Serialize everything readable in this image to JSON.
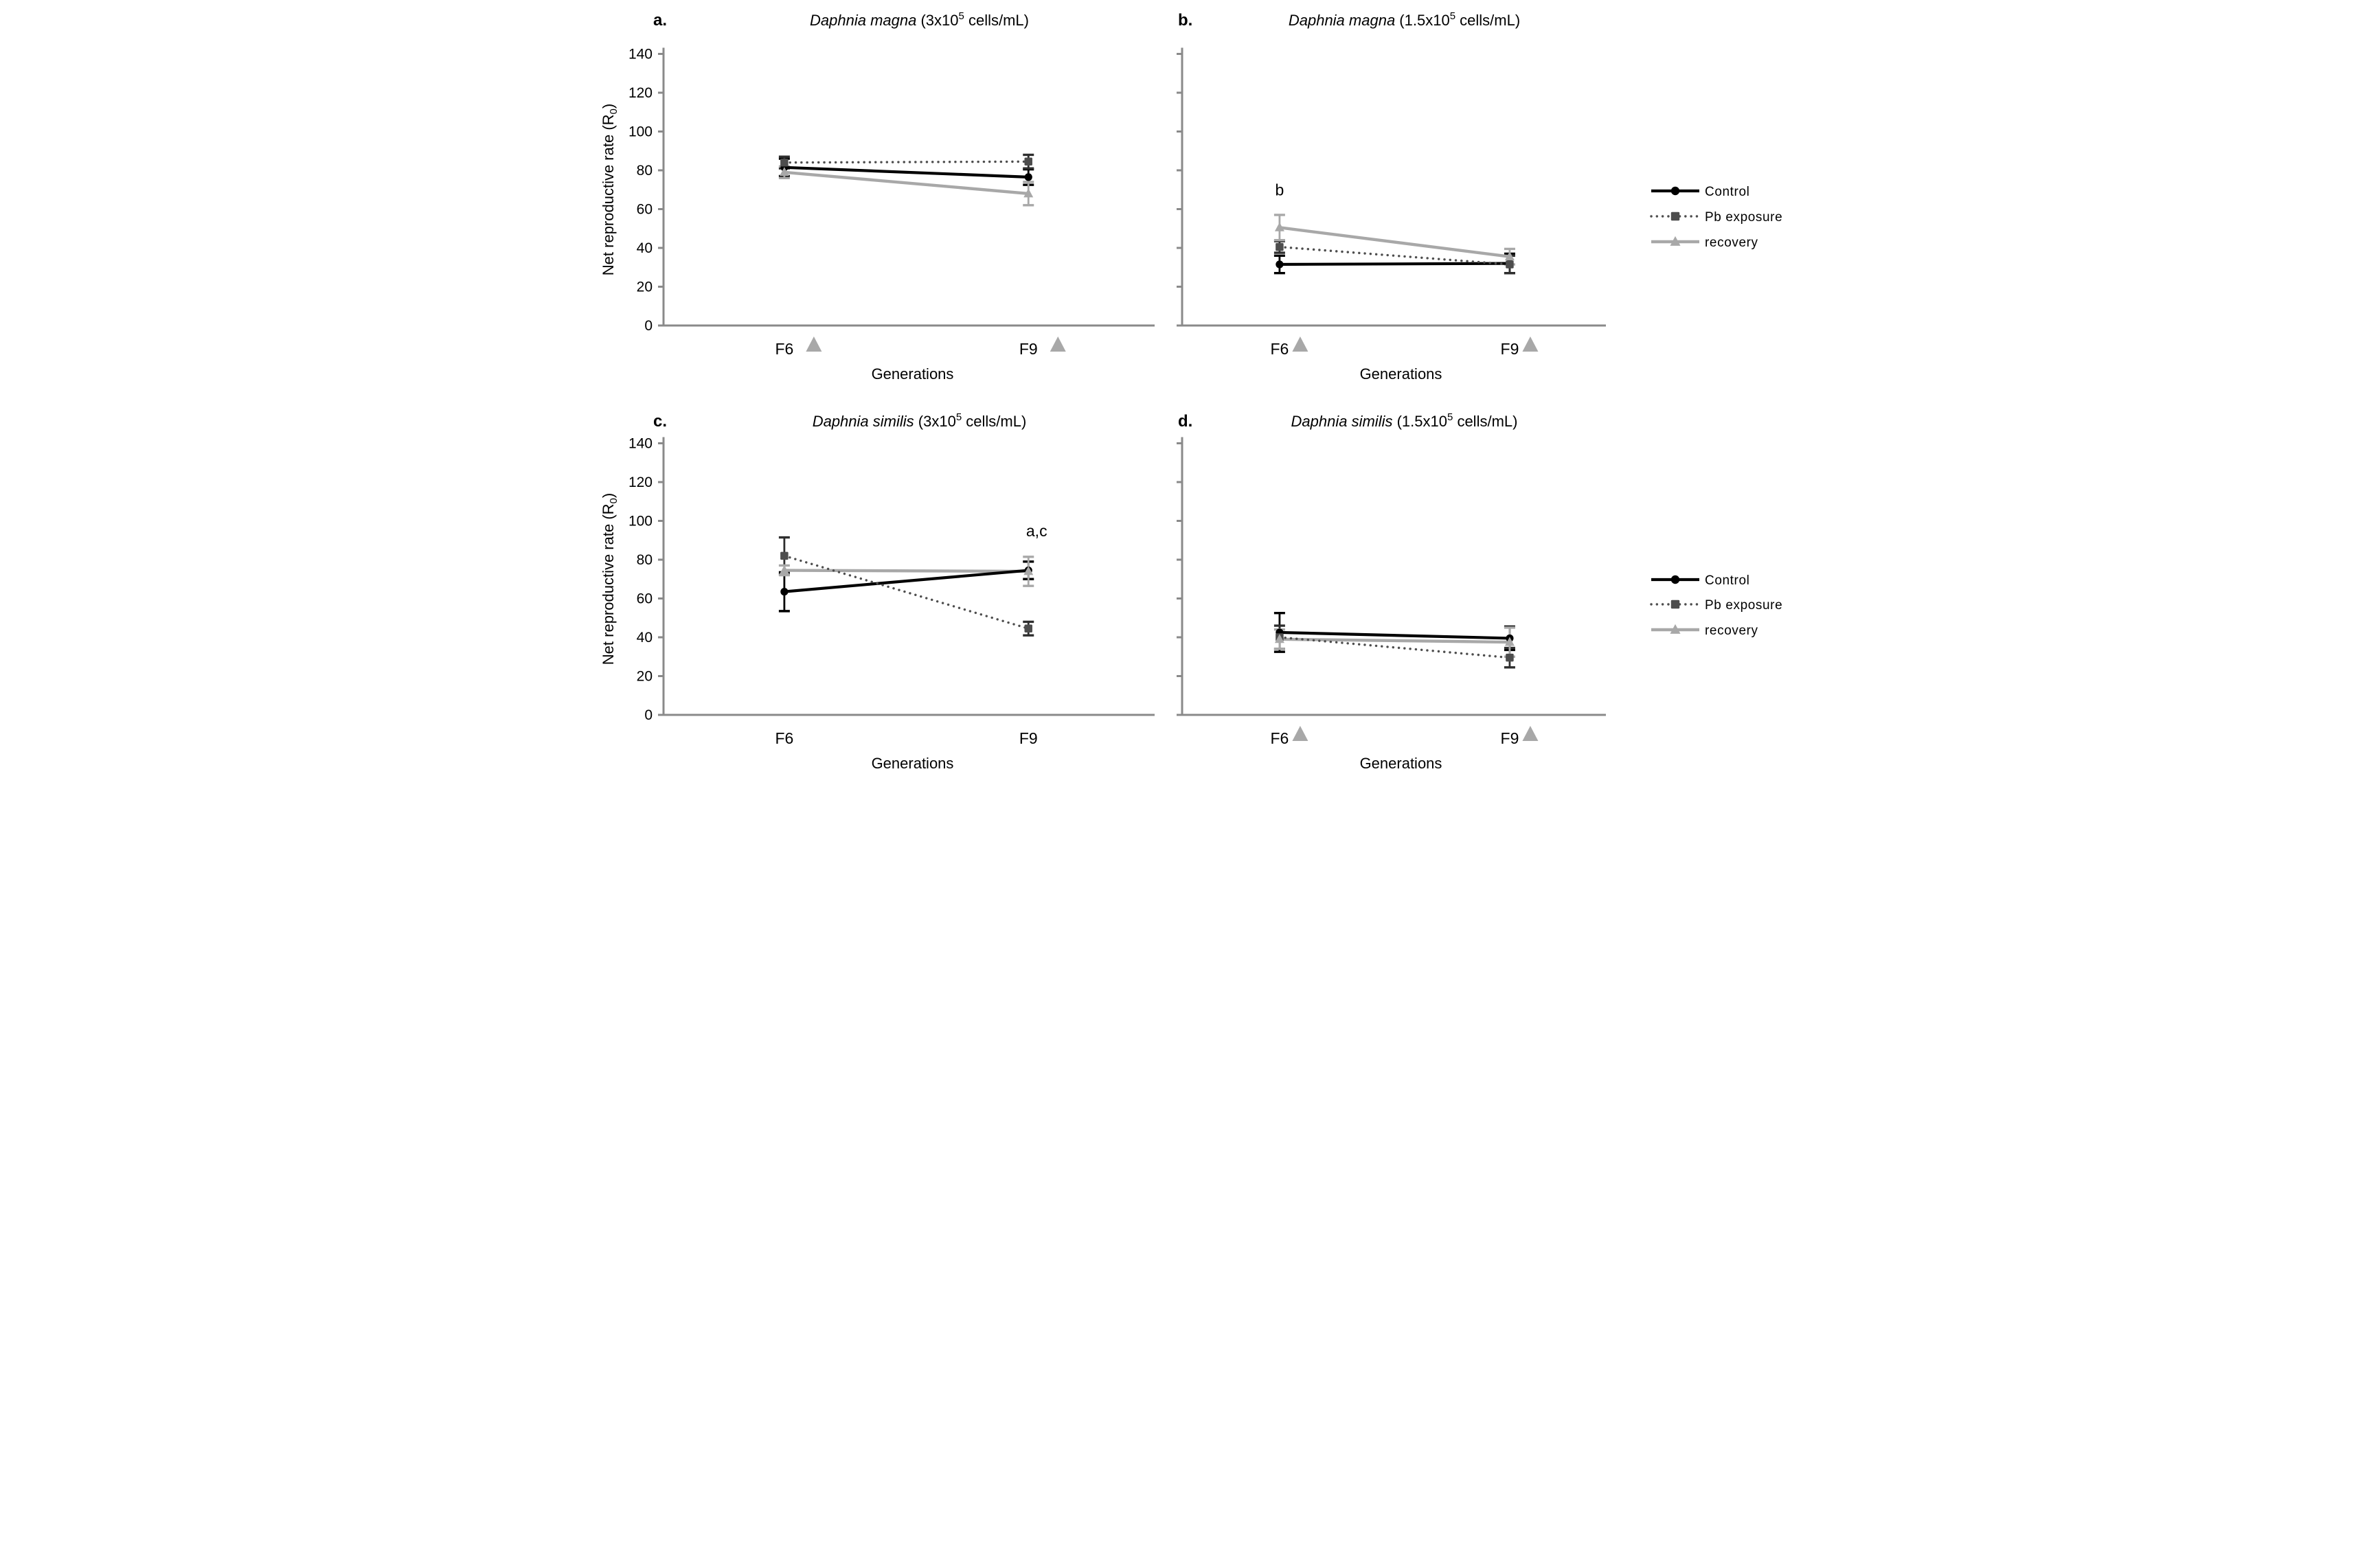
{
  "figure": {
    "y_axis_label": {
      "pre": "Net reproductive rate (R",
      "sub": "0",
      "post": ")"
    },
    "x_axis_label": "Generations",
    "y_ticks": [
      0,
      20,
      40,
      60,
      80,
      100,
      120,
      140
    ],
    "categories": [
      "F6",
      "F9"
    ],
    "colors": {
      "control": "#000000",
      "pb_exposure": "#4d4d4d",
      "recovery": "#a8a8a8",
      "axis": "#8a8a8a",
      "category_triangle": "#a8a8a8",
      "text": "#000000"
    },
    "legend": {
      "items": [
        {
          "key": "control",
          "label": "Control"
        },
        {
          "key": "pb_exposure",
          "label": "Pb exposure"
        },
        {
          "key": "recovery",
          "label": "recovery"
        }
      ]
    }
  },
  "chart_data": [
    {
      "type": "line",
      "panel_letter": "a.",
      "title": "Daphnia magna (3x10^5 cells/mL)",
      "title_parts": {
        "species": "Daphnia magna",
        "pre": " (3x10",
        "exp": "5",
        "post": " cells/mL)"
      },
      "categories": [
        "F6",
        "F9"
      ],
      "ylim": [
        0,
        140
      ],
      "xlabel": "Generations",
      "ylabel": "Net reproductive rate (R0)",
      "category_triangles": true,
      "series": [
        {
          "name": "Control",
          "values": [
            81.5,
            76.5
          ],
          "errors": [
            4.5,
            4
          ]
        },
        {
          "name": "Pb exposure",
          "values": [
            84,
            84.5
          ],
          "errors": [
            3,
            3.5
          ]
        },
        {
          "name": "recovery",
          "values": [
            79,
            68
          ],
          "errors": [
            3,
            6
          ]
        }
      ],
      "annotations": []
    },
    {
      "type": "line",
      "panel_letter": "b.",
      "title": "Daphnia magna (1.5x10^5 cells/mL)",
      "title_parts": {
        "species": "Daphnia magna",
        "pre": " (1.5x10",
        "exp": "5",
        "post": " cells/mL)"
      },
      "categories": [
        "F6",
        "F9"
      ],
      "ylim": [
        0,
        140
      ],
      "xlabel": "Generations",
      "ylabel": "Net reproductive rate (R0)",
      "category_triangles": true,
      "series": [
        {
          "name": "Control",
          "values": [
            31.5,
            32
          ],
          "errors": [
            4.5,
            5
          ]
        },
        {
          "name": "Pb exposure",
          "values": [
            40.5,
            31.5
          ],
          "errors": [
            3,
            4.5
          ]
        },
        {
          "name": "recovery",
          "values": [
            50.5,
            35.5
          ],
          "errors": [
            6.5,
            4
          ]
        }
      ],
      "annotations": [
        {
          "text": "b",
          "category": "F6",
          "value": 67
        }
      ]
    },
    {
      "type": "line",
      "panel_letter": "c.",
      "title": "Daphnia similis (3x10^5 cells/mL)",
      "title_parts": {
        "species": "Daphnia similis",
        "pre": " (3x10",
        "exp": "5",
        "post": " cells/mL)"
      },
      "categories": [
        "F6",
        "F9"
      ],
      "ylim": [
        0,
        140
      ],
      "xlabel": "Generations",
      "ylabel": "Net reproductive rate (R0)",
      "category_triangles": false,
      "series": [
        {
          "name": "Control",
          "values": [
            63.5,
            74.5
          ],
          "errors": [
            10,
            4.5
          ]
        },
        {
          "name": "Pb exposure",
          "values": [
            82,
            44.5
          ],
          "errors": [
            9.5,
            3.5
          ]
        },
        {
          "name": "recovery",
          "values": [
            74.5,
            74
          ],
          "errors": [
            2.5,
            7.5
          ]
        }
      ],
      "annotations": [
        {
          "text": "a,c",
          "category": "F9",
          "value": 92
        }
      ]
    },
    {
      "type": "line",
      "panel_letter": "d.",
      "title": "Daphnia similis (1.5x10^5 cells/mL)",
      "title_parts": {
        "species": "Daphnia similis",
        "pre": " (1.5x10",
        "exp": "5",
        "post": " cells/mL)"
      },
      "categories": [
        "F6",
        "F9"
      ],
      "ylim": [
        0,
        140
      ],
      "xlabel": "Generations",
      "ylabel": "Net reproductive rate (R0)",
      "category_triangles": true,
      "series": [
        {
          "name": "Control",
          "values": [
            42.5,
            39.5
          ],
          "errors": [
            10,
            6
          ]
        },
        {
          "name": "Pb exposure",
          "values": [
            40,
            29.5
          ],
          "errors": [
            6,
            5
          ]
        },
        {
          "name": "recovery",
          "values": [
            39,
            37.5
          ],
          "errors": [
            5,
            7.5
          ]
        }
      ],
      "annotations": []
    }
  ]
}
